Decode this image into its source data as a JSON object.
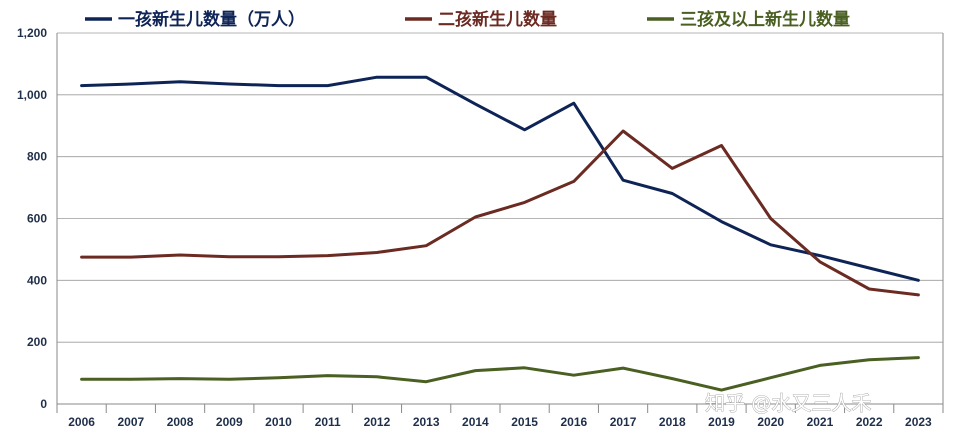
{
  "chart_data": {
    "type": "line",
    "title": "",
    "xlabel": "",
    "ylabel": "",
    "x": [
      "2006",
      "2007",
      "2008",
      "2009",
      "2010",
      "2011",
      "2012",
      "2013",
      "2014",
      "2015",
      "2016",
      "2017",
      "2018",
      "2019",
      "2020",
      "2021",
      "2022",
      "2023"
    ],
    "ylim": [
      0,
      1200
    ],
    "yticks": [
      "0",
      "200",
      "400",
      "600",
      "800",
      "1,000",
      "1,200"
    ],
    "grid": "horizontal",
    "legend_position": "top",
    "series": [
      {
        "name": "一孩新生儿数量（万人）",
        "color": "#0f2456",
        "values": [
          1030,
          1035,
          1042,
          1035,
          1030,
          1030,
          1057,
          1057,
          970,
          887,
          973,
          724,
          681,
          590,
          515,
          480,
          440,
          400
        ]
      },
      {
        "name": "二孩新生儿数量",
        "color": "#6b2a22",
        "values": [
          475,
          475,
          482,
          476,
          476,
          480,
          490,
          512,
          605,
          652,
          720,
          883,
          762,
          836,
          600,
          460,
          372,
          353
        ]
      },
      {
        "name": "三孩及以上新生儿数量",
        "color": "#4a5f22",
        "values": [
          80,
          80,
          82,
          80,
          85,
          92,
          88,
          72,
          108,
          117,
          93,
          116,
          82,
          45,
          85,
          125,
          143,
          150
        ]
      }
    ]
  },
  "watermark": "知乎 @水又三人禾"
}
